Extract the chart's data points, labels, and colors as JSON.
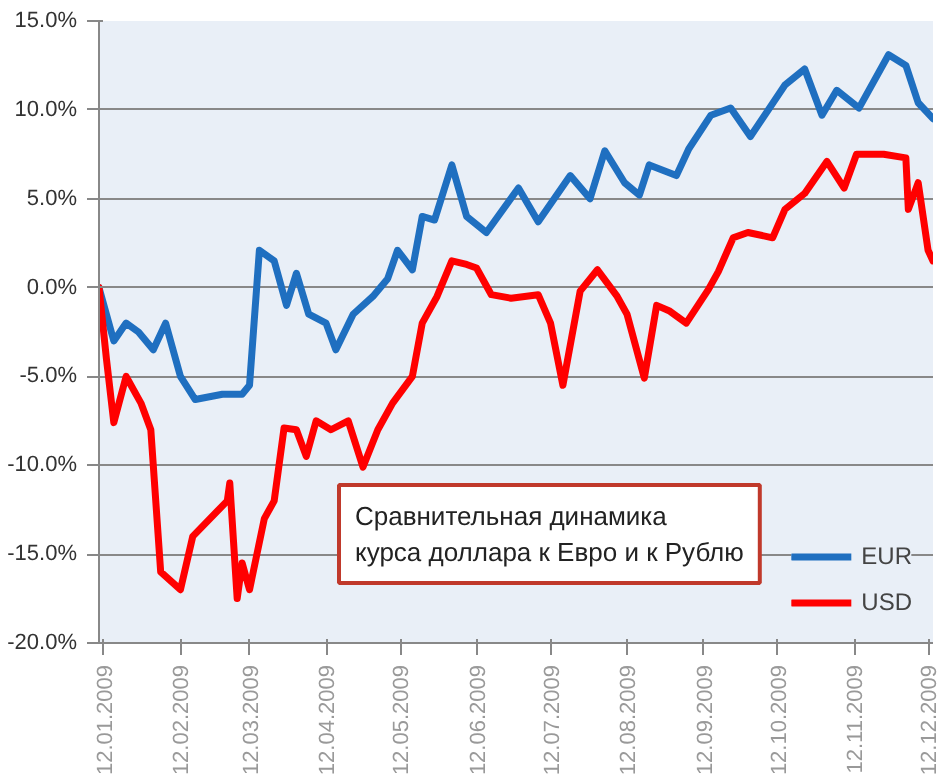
{
  "chart_data": {
    "type": "line",
    "annotations": [
      "Сравнительная динамика\nкурса доллара к Евро и к Рублю"
    ],
    "xlim": [
      "2009-01-10",
      "2009-12-14"
    ],
    "xticks": [
      {
        "value": "2009-01-12",
        "label": "12.01.2009"
      },
      {
        "value": "2009-02-12",
        "label": "12.02.2009"
      },
      {
        "value": "2009-03-12",
        "label": "12.03.2009"
      },
      {
        "value": "2009-04-12",
        "label": "12.04.2009"
      },
      {
        "value": "2009-05-12",
        "label": "12.05.2009"
      },
      {
        "value": "2009-06-12",
        "label": "12.06.2009"
      },
      {
        "value": "2009-07-12",
        "label": "12.07.2009"
      },
      {
        "value": "2009-08-12",
        "label": "12.08.2009"
      },
      {
        "value": "2009-09-12",
        "label": "12.09.2009"
      },
      {
        "value": "2009-10-12",
        "label": "12.10.2009"
      },
      {
        "value": "2009-11-12",
        "label": "12.11.2009"
      },
      {
        "value": "2009-12-12",
        "label": "12.12.2009"
      }
    ],
    "ylim": [
      -20,
      15
    ],
    "yticks": [
      {
        "value": -20,
        "label": "-20.0%"
      },
      {
        "value": -15,
        "label": "-15.0%"
      },
      {
        "value": -10,
        "label": "-10.0%"
      },
      {
        "value": -5,
        "label": "-5.0%"
      },
      {
        "value": 0,
        "label": "0.0%"
      },
      {
        "value": 5,
        "label": "5.0%"
      },
      {
        "value": 10,
        "label": "10.0%"
      },
      {
        "value": 15,
        "label": "15.0%"
      }
    ],
    "grid": "y",
    "legend": "bottom right",
    "marker": "none",
    "line_style": "solid",
    "series": [
      {
        "name": "EUR",
        "color": "#1f6fc0",
        "x": [
          "2009-01-10",
          "2009-01-16",
          "2009-01-21",
          "2009-01-26",
          "2009-02-01",
          "2009-02-06",
          "2009-02-12",
          "2009-02-18",
          "2009-03-01",
          "2009-03-09",
          "2009-03-12",
          "2009-03-16",
          "2009-03-22",
          "2009-03-27",
          "2009-03-31",
          "2009-04-05",
          "2009-04-12",
          "2009-04-16",
          "2009-04-23",
          "2009-05-01",
          "2009-05-07",
          "2009-05-11",
          "2009-05-17",
          "2009-05-21",
          "2009-05-26",
          "2009-06-02",
          "2009-06-08",
          "2009-06-16",
          "2009-06-29",
          "2009-07-07",
          "2009-07-20",
          "2009-07-28",
          "2009-08-03",
          "2009-08-11",
          "2009-08-17",
          "2009-08-21",
          "2009-09-01",
          "2009-09-06",
          "2009-09-15",
          "2009-09-23",
          "2009-10-01",
          "2009-10-15",
          "2009-10-23",
          "2009-10-30",
          "2009-11-05",
          "2009-11-14",
          "2009-11-26",
          "2009-12-03",
          "2009-12-08",
          "2009-12-14"
        ],
        "values": [
          0,
          -3,
          -2,
          -2.5,
          -3.5,
          -2,
          -5,
          -6.3,
          -6,
          -6,
          -5.5,
          2.1,
          1.5,
          -1,
          0.8,
          -1.5,
          -2,
          -3.5,
          -1.5,
          -0.5,
          0.5,
          2.1,
          1,
          4,
          3.8,
          6.9,
          4,
          3.1,
          5.6,
          3.7,
          6.3,
          5,
          7.7,
          5.9,
          5.2,
          6.9,
          6.3,
          7.8,
          9.7,
          10.1,
          8.5,
          11.4,
          12.3,
          9.7,
          11.1,
          10.1,
          13.1,
          12.5,
          10.4,
          9.5
        ]
      },
      {
        "name": "USD",
        "color": "#ff0000",
        "x": [
          "2009-01-10",
          "2009-01-13",
          "2009-01-16",
          "2009-01-21",
          "2009-01-27",
          "2009-01-31",
          "2009-02-04",
          "2009-02-12",
          "2009-02-17",
          "2009-03-03",
          "2009-03-04",
          "2009-03-07",
          "2009-03-09",
          "2009-03-12",
          "2009-03-15",
          "2009-03-18",
          "2009-03-22",
          "2009-03-26",
          "2009-03-31",
          "2009-04-04",
          "2009-04-08",
          "2009-04-14",
          "2009-04-21",
          "2009-04-27",
          "2009-05-03",
          "2009-05-09",
          "2009-05-17",
          "2009-05-21",
          "2009-05-27",
          "2009-06-02",
          "2009-06-08",
          "2009-06-12",
          "2009-06-18",
          "2009-06-26",
          "2009-07-07",
          "2009-07-12",
          "2009-07-17",
          "2009-07-24",
          "2009-07-31",
          "2009-08-08",
          "2009-08-12",
          "2009-08-19",
          "2009-08-24",
          "2009-08-29",
          "2009-09-05",
          "2009-09-14",
          "2009-09-18",
          "2009-09-24",
          "2009-09-30",
          "2009-10-10",
          "2009-10-15",
          "2009-10-23",
          "2009-11-01",
          "2009-11-08",
          "2009-11-13",
          "2009-11-24",
          "2009-12-03",
          "2009-12-04",
          "2009-12-08",
          "2009-12-12",
          "2009-12-14"
        ],
        "values": [
          0,
          -4,
          -7.6,
          -5,
          -6.5,
          -8,
          -16,
          -17,
          -14,
          -12,
          -11,
          -17.5,
          -15.5,
          -17,
          -15,
          -13,
          -12,
          -7.9,
          -8,
          -9.5,
          -7.5,
          -8,
          -7.5,
          -10.1,
          -8,
          -6.5,
          -5,
          -2,
          -0.5,
          1.5,
          1.3,
          1.1,
          -0.4,
          -0.6,
          -0.4,
          -2,
          -5.5,
          -0.2,
          1,
          -0.5,
          -1.5,
          -5.1,
          -1,
          -1.3,
          -2,
          -0.1,
          0.9,
          2.8,
          3.1,
          2.8,
          4.4,
          5.3,
          7.1,
          5.6,
          7.5,
          7.5,
          7.3,
          4.4,
          5.9,
          2.1,
          1.5
        ]
      }
    ]
  }
}
